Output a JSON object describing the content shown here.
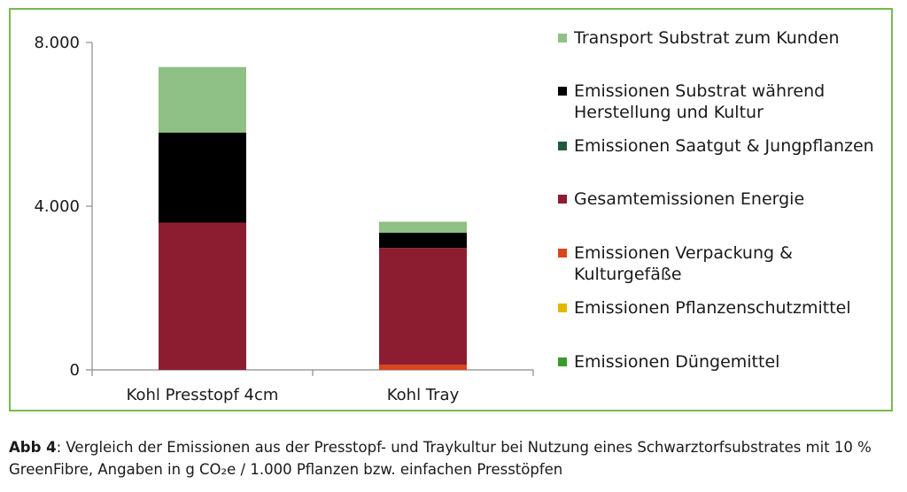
{
  "chart_data": {
    "type": "bar",
    "stacked": true,
    "categories": [
      "Kohl Presstopf 4cm",
      "Kohl Tray"
    ],
    "yticks": [
      "0",
      "4.000",
      "8.000"
    ],
    "ylim": [
      0,
      8000
    ],
    "grid": false,
    "legend_position": "right",
    "series": [
      {
        "name": "Emissionen Düngemittel",
        "color": "#3a9a2c",
        "values": [
          0,
          0
        ]
      },
      {
        "name": "Emissionen Pflanzenschutzmittel",
        "color": "#e3b800",
        "values": [
          0,
          0
        ]
      },
      {
        "name": "Emissionen Verpackung & Kulturgefäße",
        "color": "#d6461f",
        "values": [
          0,
          130
        ]
      },
      {
        "name": "Gesamtemissionen Energie",
        "color": "#8c1d30",
        "values": [
          3600,
          2850
        ]
      },
      {
        "name": "Emissionen Saatgut & Jungpflanzen",
        "color": "#1f5a3c",
        "values": [
          0,
          0
        ]
      },
      {
        "name": "Emissionen Substrat während Herstellung und Kultur",
        "color": "#000000",
        "values": [
          2200,
          370
        ]
      },
      {
        "name": "Transport Substrat zum Kunden",
        "color": "#8fc085",
        "values": [
          1600,
          270
        ]
      }
    ]
  },
  "legend": [
    {
      "label": "Transport Substrat zum Kunden",
      "color": "#8fc085"
    },
    {
      "label": "Emissionen Substrat während Herstellung und Kultur",
      "color": "#000000"
    },
    {
      "label": "Emissionen Saatgut & Jungpflanzen",
      "color": "#1f5a3c"
    },
    {
      "label": "Gesamtemissionen Energie",
      "color": "#8c1d30"
    },
    {
      "label": "Emissionen Verpackung & Kulturgefäße",
      "color": "#d6461f"
    },
    {
      "label": "Emissionen Pflanzenschutzmittel",
      "color": "#e3b800"
    },
    {
      "label": "Emissionen Düngemittel",
      "color": "#3a9a2c"
    }
  ],
  "caption": {
    "label": "Abb 4",
    "text": ": Vergleich der Emissionen aus der Presstopf- und Traykultur bei Nutzung eines Schwarztorfsubstrates mit 10 % GreenFibre, Angaben in g CO₂e / 1.000 Pflanzen bzw. einfachen Presstöpfen"
  },
  "colors": {
    "frame_border": "#79b94d",
    "axis": "#8a8a8a"
  }
}
